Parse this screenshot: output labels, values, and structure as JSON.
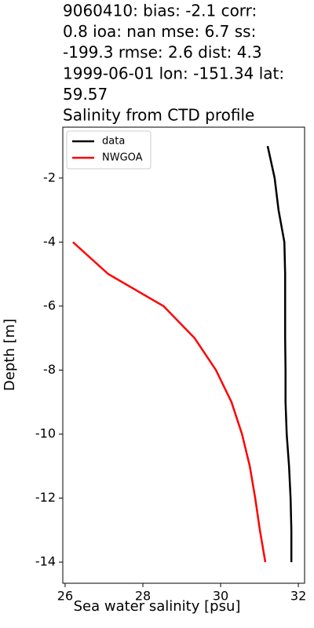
{
  "chart_data": {
    "type": "line",
    "title": [
      "9060410: bias: -2.1  corr:",
      "0.8  ioa: nan  mse: 6.7  ss:",
      "-199.3  rmse: 2.6  dist: 4.3",
      "1999-06-01 lon: -151.34 lat:",
      "59.57",
      "Salinity from CTD profile"
    ],
    "xlabel": "Sea water salinity [psu]",
    "ylabel": "Depth [m]",
    "xlim": [
      25.94,
      32.16
    ],
    "xticks": [
      26,
      28,
      30,
      32
    ],
    "ylim": [
      -14.66,
      -0.41
    ],
    "yticks": [
      -14,
      -12,
      -10,
      -8,
      -6,
      -4,
      -2
    ],
    "legend": "upper left",
    "series": [
      {
        "name": "data",
        "color": "#000000",
        "x": [
          31.21,
          31.39,
          31.49,
          31.64,
          31.66,
          31.66,
          31.66,
          31.67,
          31.67,
          31.7,
          31.76,
          31.8,
          31.82,
          31.82
        ],
        "values": [
          -1,
          -2,
          -3,
          -4,
          -5,
          -6,
          -7,
          -8,
          -9,
          -10,
          -11,
          -12,
          -13,
          -14
        ]
      },
      {
        "name": "NWGOA",
        "color": "#ff0000",
        "x": [
          26.2,
          27.11,
          28.53,
          29.33,
          29.88,
          30.28,
          30.55,
          30.75,
          30.89,
          31.01,
          31.15
        ],
        "values": [
          -4,
          -5,
          -6,
          -7,
          -8,
          -9,
          -10,
          -11,
          -12,
          -13,
          -14
        ]
      }
    ]
  }
}
